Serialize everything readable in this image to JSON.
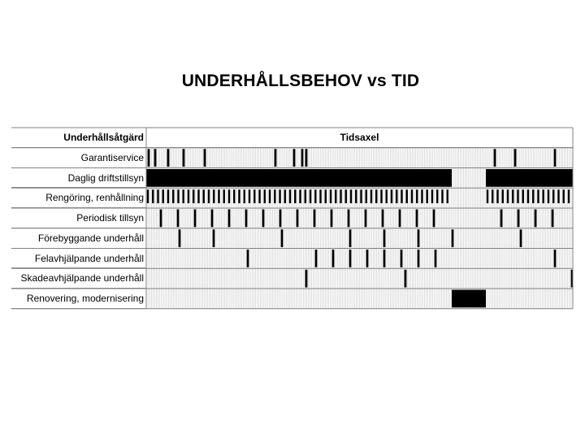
{
  "title": "UNDERHÅLLSBEHOV vs TID",
  "header": {
    "left": "Underhållsåtgärd",
    "right": "Tidsaxel"
  },
  "rows": [
    {
      "label": "Garantiservice"
    },
    {
      "label": "Daglig driftstillsyn"
    },
    {
      "label": "Rengöring, renhållning"
    },
    {
      "label": "Periodisk tillsyn"
    },
    {
      "label": "Förebyggande underhåll"
    },
    {
      "label": "Felavhjälpande underhåll"
    },
    {
      "label": "Skadeavhjälpande underhåll"
    },
    {
      "label": "Renovering, modernisering"
    }
  ]
}
